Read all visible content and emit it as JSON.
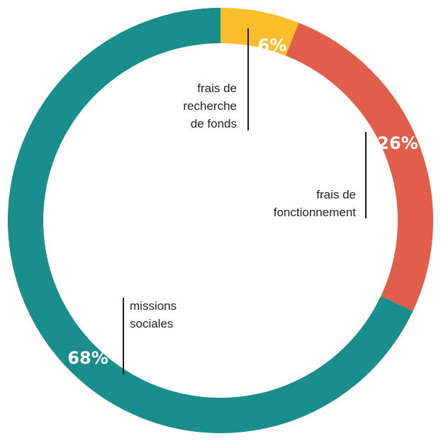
{
  "chart_data": {
    "type": "pie",
    "title": "",
    "slices": [
      {
        "name": "frais de recherche de fonds",
        "value": 6,
        "value_label": "6%",
        "label_lines": [
          "frais de",
          "recherche",
          "de fonds"
        ],
        "color": "#FBBE2B"
      },
      {
        "name": "frais de fonctionnement",
        "value": 26,
        "value_label": "26%",
        "label_lines": [
          "frais de",
          "fonctionnement"
        ],
        "color": "#E05E4A"
      },
      {
        "name": "missions sociales",
        "value": 68,
        "value_label": "68%",
        "label_lines": [
          "missions",
          "sociales"
        ],
        "color": "#1A8E8C"
      }
    ]
  }
}
